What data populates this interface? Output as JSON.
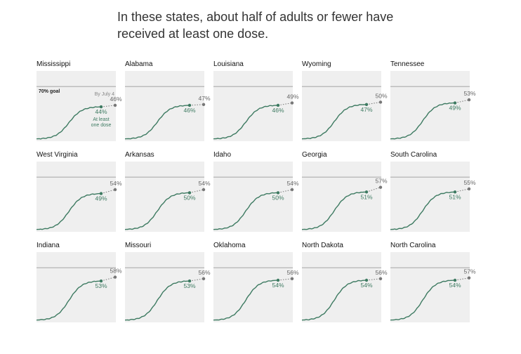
{
  "title": "In these states, about half of adults or fewer have received at least one dose.",
  "annotations": {
    "goal_label": "70% goal",
    "projection_label": "By July 4",
    "current_label": "At least one dose"
  },
  "colors": {
    "line": "#3d7a61",
    "goal_line": "#bdbdbd",
    "projection": "#777777",
    "panel_bg": "#efefef"
  },
  "chart_data": {
    "type": "line",
    "title": "In these states, about half of adults or fewer have received at least one dose.",
    "ylim": [
      0,
      90
    ],
    "goal": 70,
    "grid": false,
    "panels": [
      {
        "state": "Mississippi",
        "current": 44,
        "projected": 46
      },
      {
        "state": "Alabama",
        "current": 46,
        "projected": 47
      },
      {
        "state": "Louisiana",
        "current": 46,
        "projected": 49
      },
      {
        "state": "Wyoming",
        "current": 47,
        "projected": 50
      },
      {
        "state": "Tennessee",
        "current": 49,
        "projected": 53
      },
      {
        "state": "West Virginia",
        "current": 49,
        "projected": 54
      },
      {
        "state": "Arkansas",
        "current": 50,
        "projected": 54
      },
      {
        "state": "Idaho",
        "current": 50,
        "projected": 54
      },
      {
        "state": "Georgia",
        "current": 51,
        "projected": 57
      },
      {
        "state": "South Carolina",
        "current": 51,
        "projected": 55
      },
      {
        "state": "Indiana",
        "current": 53,
        "projected": 58
      },
      {
        "state": "Missouri",
        "current": 53,
        "projected": 56
      },
      {
        "state": "Oklahoma",
        "current": 54,
        "projected": 56
      },
      {
        "state": "North Dakota",
        "current": 54,
        "projected": 56
      },
      {
        "state": "North Carolina",
        "current": 54,
        "projected": 57
      }
    ]
  }
}
